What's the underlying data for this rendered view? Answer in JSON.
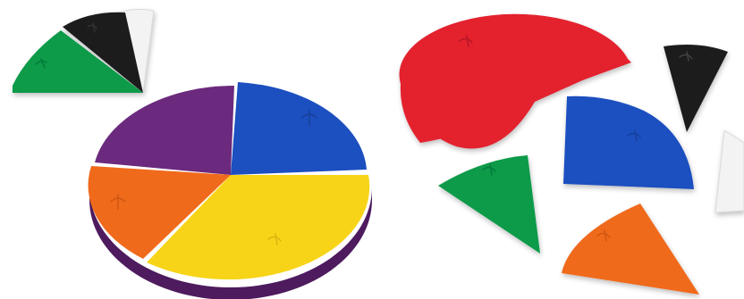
{
  "scene": {
    "background": "#ffffff"
  },
  "colors": {
    "purple": "#6b2a7d",
    "blue": "#1c4fbf",
    "yellow": "#f7d417",
    "orange": "#f06a1c",
    "red": "#e3202f",
    "green": "#089a49",
    "black": "#1a1a1a",
    "white": "#f3f3f3"
  }
}
